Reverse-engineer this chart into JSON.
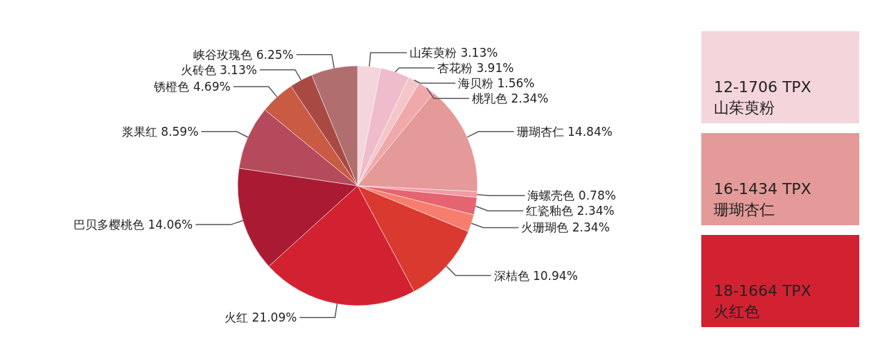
{
  "chart_data": [
    {
      "type": "pie",
      "categories": [
        "山茱萸粉",
        "杏花粉",
        "海贝粉",
        "桃乳色",
        "珊瑚杏仁",
        "海螺壳色",
        "红瓷釉色",
        "火珊瑚色",
        "深桔色",
        "火红",
        "巴贝多樱桃色",
        "浆果红",
        "锈橙色",
        "火砖色",
        "峡谷玫瑰色"
      ],
      "values": [
        3.13,
        3.91,
        1.56,
        2.34,
        14.84,
        0.78,
        2.34,
        2.34,
        10.94,
        21.09,
        14.06,
        8.59,
        4.69,
        3.13,
        6.25
      ],
      "value_labels": [
        "3.13%",
        "3.91%",
        "1.56%",
        "2.34%",
        "14.84%",
        "0.78%",
        "2.34%",
        "2.34%",
        "10.94%",
        "21.09%",
        "14.06%",
        "8.59%",
        "4.69%",
        "3.13%",
        "6.25%"
      ],
      "colors": [
        "#f5d5dc",
        "#efbccb",
        "#f3c7c9",
        "#f0a8ab",
        "#e49a98",
        "#f29aa5",
        "#e46472",
        "#f77e6e",
        "#d9392f",
        "#d22231",
        "#aa1b33",
        "#b54a5c",
        "#c95a44",
        "#a84a43",
        "#b06e6e"
      ]
    },
    {
      "type": "other",
      "annotations": [
        "12-1706 TPX\n山茱萸粉",
        "16-1434 TPX\n珊瑚杏仁",
        "18-1664 TPX\n火红色"
      ]
    }
  ]
}
